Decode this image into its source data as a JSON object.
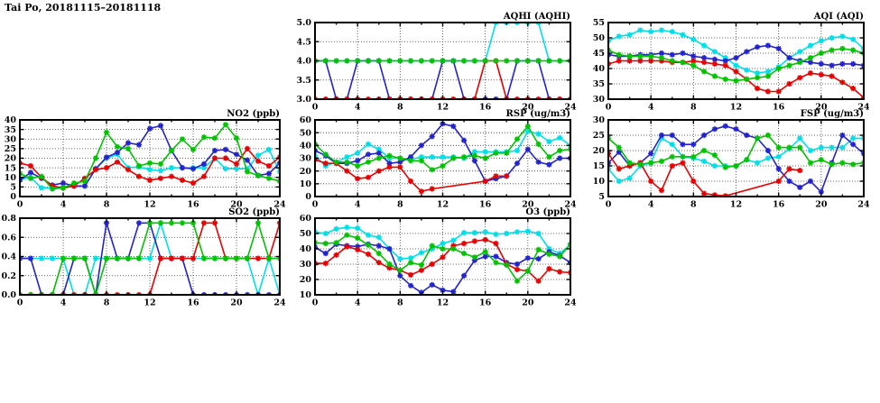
{
  "title": "Tai Po, 20181115–20181118",
  "colors": {
    "red": "#e60000",
    "green": "#00c300",
    "blue": "#2323cc",
    "cyan": "#00dfe8"
  },
  "chart_data": [
    {
      "key": "aqhi",
      "type": "line",
      "title": "AQHI (AQHI)",
      "grid_pos": {
        "col": 1,
        "row": 0
      },
      "xlim": [
        0,
        24
      ],
      "xticks": [
        0,
        4,
        8,
        12,
        16,
        20,
        24
      ],
      "xminor": 2,
      "ylim": [
        3.0,
        5.0
      ],
      "yticks": [
        3.0,
        3.5,
        4.0,
        4.5,
        5.0
      ],
      "ydecimals": 1,
      "grid": true,
      "legend": "none",
      "series": [
        {
          "name": "cyan",
          "values": [
            4,
            4,
            4,
            4,
            4,
            4,
            4,
            4,
            4,
            4,
            4,
            4,
            4,
            4,
            4,
            4,
            4,
            5,
            5,
            5,
            5,
            5,
            4,
            4,
            4
          ]
        },
        {
          "name": "blue",
          "values": [
            4,
            4,
            3,
            3,
            4,
            4,
            4,
            3,
            3,
            3,
            3,
            3,
            4,
            4,
            3,
            3,
            3,
            3,
            3,
            4,
            4,
            4,
            3,
            3,
            3
          ]
        },
        {
          "name": "red",
          "values": [
            3,
            3,
            3,
            3,
            3,
            3,
            3,
            3,
            3,
            3,
            3,
            3,
            3,
            3,
            3,
            3,
            4,
            4,
            3,
            3,
            3,
            3,
            3,
            3,
            3
          ]
        },
        {
          "name": "green",
          "values": [
            4,
            4,
            4,
            4,
            4,
            4,
            4,
            4,
            4,
            4,
            4,
            4,
            4,
            4,
            4,
            4,
            4,
            4,
            4,
            4,
            4,
            4,
            4,
            4,
            4
          ]
        }
      ]
    },
    {
      "key": "aqi",
      "type": "line",
      "title": "AQI (AQI)",
      "grid_pos": {
        "col": 2,
        "row": 0
      },
      "xlim": [
        0,
        24
      ],
      "xticks": [
        0,
        4,
        8,
        12,
        16,
        20,
        24
      ],
      "xminor": 2,
      "ylim": [
        30,
        55
      ],
      "yticks": [
        30,
        35,
        40,
        45,
        50,
        55
      ],
      "ydecimals": 0,
      "grid": true,
      "legend": "none",
      "series": [
        {
          "name": "cyan",
          "values": [
            49,
            50.5,
            51,
            52.5,
            52,
            52.5,
            52,
            51,
            49.5,
            47.5,
            45.5,
            43.5,
            41,
            39.5,
            38.5,
            39,
            40.5,
            43.5,
            45.5,
            47.5,
            49,
            50,
            50.5,
            49.5,
            46.5
          ]
        },
        {
          "name": "blue",
          "values": [
            44.5,
            44,
            44,
            44.5,
            44.5,
            45,
            44.5,
            45,
            44,
            43.5,
            43,
            42.5,
            43.5,
            45.5,
            47,
            47.5,
            46.5,
            43.5,
            42.5,
            42,
            41.5,
            41,
            41.5,
            41.5,
            41
          ]
        },
        {
          "name": "red",
          "values": [
            41.5,
            42.5,
            42.5,
            42.5,
            42.5,
            42.5,
            42,
            42,
            42.5,
            42,
            41.5,
            41,
            39,
            36.5,
            33.5,
            32.5,
            32.5,
            35,
            37,
            38.5,
            38,
            37.5,
            35.5,
            33.5,
            30.5
          ]
        },
        {
          "name": "green",
          "values": [
            46,
            44.5,
            44,
            44,
            44,
            43.5,
            42.5,
            42,
            41,
            39,
            37.5,
            36.5,
            36,
            36.5,
            37,
            37.5,
            40,
            41,
            42,
            43.5,
            45,
            46,
            46.5,
            46,
            45
          ]
        }
      ]
    },
    {
      "key": "no2",
      "type": "line",
      "title": "NO2 (ppb)",
      "grid_pos": {
        "col": 0,
        "row": 1
      },
      "xlim": [
        0,
        24
      ],
      "xticks": [
        0,
        4,
        8,
        12,
        16,
        20,
        24
      ],
      "xminor": 2,
      "ylim": [
        0,
        40
      ],
      "yticks": [
        0,
        5,
        10,
        15,
        20,
        25,
        30,
        35,
        40
      ],
      "ydecimals": 0,
      "grid": true,
      "legend": "none",
      "series": [
        {
          "name": "cyan",
          "values": [
            9,
            10,
            4.5,
            4.5,
            4.5,
            5.5,
            5.5,
            14.5,
            20,
            22,
            15,
            15.5,
            14,
            13.5,
            15,
            15,
            15,
            15,
            20,
            14.5,
            14.5,
            14.5,
            21.5,
            24.5,
            13
          ]
        },
        {
          "name": "blue",
          "values": [
            8.5,
            12.5,
            9.5,
            6,
            7,
            5.5,
            5.5,
            14.5,
            20.5,
            23,
            28,
            27,
            35.5,
            37,
            24,
            15,
            14.5,
            17,
            24,
            24.5,
            22,
            19,
            11,
            12,
            17.5
          ]
        },
        {
          "name": "red",
          "values": [
            17.5,
            16,
            10,
            5.5,
            4.5,
            5.5,
            9.5,
            14,
            15,
            18,
            14,
            10.5,
            8.5,
            9.5,
            10.5,
            8.5,
            7,
            10.5,
            20,
            20,
            17,
            25,
            18.5,
            16,
            20.5
          ]
        },
        {
          "name": "green",
          "values": [
            12,
            9.5,
            10.5,
            4,
            4.5,
            7,
            8,
            20,
            33.5,
            26,
            25,
            16,
            17.5,
            17,
            24,
            30,
            24.5,
            31,
            30.5,
            37.5,
            30.5,
            13,
            11,
            9.5,
            8
          ]
        }
      ]
    },
    {
      "key": "rsp",
      "type": "line",
      "title": "RSP (ug/m3)",
      "grid_pos": {
        "col": 1,
        "row": 1
      },
      "xlim": [
        0,
        24
      ],
      "xticks": [
        0,
        4,
        8,
        12,
        16,
        20,
        24
      ],
      "xminor": 2,
      "ylim": [
        0,
        60
      ],
      "yticks": [
        0,
        10,
        20,
        30,
        40,
        50,
        60
      ],
      "ydecimals": 0,
      "grid": true,
      "legend": "none",
      "series": [
        {
          "name": "cyan",
          "values": [
            32,
            24,
            27,
            31,
            34,
            41,
            37,
            30,
            30,
            29,
            31,
            31,
            31,
            31,
            30,
            35,
            35,
            35,
            35,
            36,
            51,
            49,
            43,
            46,
            40
          ]
        },
        {
          "name": "blue",
          "values": [
            36,
            32,
            26,
            26,
            28,
            33,
            34,
            26,
            27,
            31,
            40,
            47,
            57,
            55,
            44,
            28,
            12,
            14,
            16,
            26,
            37,
            27,
            25,
            30,
            30
          ]
        },
        {
          "name": "red",
          "values": [
            29,
            26,
            26,
            20,
            14,
            15,
            20,
            23,
            23,
            12,
            4,
            6,
            null,
            null,
            null,
            null,
            12,
            16,
            16,
            null,
            null,
            null,
            null,
            null,
            null
          ]
        },
        {
          "name": "green",
          "values": [
            41,
            33,
            27,
            27,
            24,
            27,
            30,
            32,
            30,
            28,
            28,
            21,
            24,
            30,
            31,
            32,
            30,
            34,
            34,
            45,
            55,
            41,
            31,
            36,
            37
          ]
        }
      ]
    },
    {
      "key": "fsp",
      "type": "line",
      "title": "FSP (ug/m3)",
      "grid_pos": {
        "col": 2,
        "row": 1
      },
      "xlim": [
        0,
        24
      ],
      "xticks": [
        0,
        4,
        8,
        12,
        16,
        20,
        24
      ],
      "xminor": 2,
      "ylim": [
        5,
        30
      ],
      "yticks": [
        5,
        10,
        15,
        20,
        25,
        30
      ],
      "ydecimals": 0,
      "grid": true,
      "legend": "none",
      "series": [
        {
          "name": "cyan",
          "values": [
            14,
            10,
            11,
            15,
            16,
            24,
            22,
            18,
            17.5,
            16.5,
            15,
            15,
            15,
            17,
            16,
            17.5,
            18,
            20.5,
            24,
            20,
            21,
            21,
            21,
            24,
            24
          ]
        },
        {
          "name": "blue",
          "values": [
            16,
            19.5,
            15,
            16,
            19,
            25,
            25,
            22,
            22,
            25,
            27,
            28,
            27,
            25,
            24,
            20,
            14,
            10,
            8,
            10,
            6.5,
            16,
            25,
            22,
            19
          ]
        },
        {
          "name": "red",
          "values": [
            19,
            14,
            15,
            16,
            10,
            7,
            15,
            16,
            10,
            6,
            5.5,
            5.2,
            null,
            null,
            null,
            null,
            10,
            14,
            13.5,
            null,
            null,
            null,
            null,
            null,
            null
          ]
        },
        {
          "name": "green",
          "values": [
            24,
            21,
            16,
            15.5,
            16,
            16.5,
            18,
            18,
            18,
            20,
            18.5,
            14.5,
            15,
            17,
            24,
            25,
            21,
            21,
            21,
            16,
            17,
            15.5,
            16,
            15.5,
            16
          ]
        }
      ]
    },
    {
      "key": "so2",
      "type": "line",
      "title": "SO2 (ppb)",
      "grid_pos": {
        "col": 0,
        "row": 2
      },
      "xlim": [
        0,
        24
      ],
      "xticks": [
        0,
        4,
        8,
        12,
        16,
        20,
        24
      ],
      "xminor": 2,
      "ylim": [
        0.0,
        0.8
      ],
      "yticks": [
        0.0,
        0.2,
        0.4,
        0.6,
        0.8
      ],
      "ydecimals": 1,
      "grid": true,
      "legend": "none",
      "series": [
        {
          "name": "cyan",
          "values": [
            0.38,
            0.38,
            0.38,
            0.38,
            0.38,
            0,
            0,
            0.38,
            0.38,
            0.38,
            0.38,
            0.38,
            0.38,
            0.75,
            0.38,
            0.38,
            0.38,
            0.38,
            0.38,
            0.38,
            0.38,
            0.38,
            0,
            0.38,
            0
          ]
        },
        {
          "name": "blue",
          "values": [
            0.38,
            0.38,
            0,
            0,
            0,
            0.38,
            0.38,
            0,
            0.75,
            0.38,
            0.38,
            0.75,
            0.75,
            0.38,
            0.38,
            0.38,
            0,
            0,
            0,
            0,
            0,
            0,
            0,
            0,
            0
          ]
        },
        {
          "name": "red",
          "values": [
            0,
            0,
            0,
            0,
            0,
            0,
            0,
            0,
            0,
            0,
            0,
            0,
            0,
            0.38,
            0.38,
            0.38,
            0.38,
            0.75,
            0.75,
            0.38,
            0.38,
            0.38,
            0.38,
            0.38,
            0.75
          ]
        },
        {
          "name": "green",
          "values": [
            0,
            0,
            0,
            0,
            0.38,
            0.38,
            0.38,
            0,
            0.38,
            0.38,
            0.38,
            0.38,
            0.75,
            0.75,
            0.75,
            0.75,
            0.75,
            0.38,
            0.38,
            0.38,
            0.38,
            0.38,
            0.75,
            0.38,
            0.38
          ]
        }
      ]
    },
    {
      "key": "o3",
      "type": "line",
      "title": "O3 (ppb)",
      "grid_pos": {
        "col": 1,
        "row": 2
      },
      "xlim": [
        0,
        24
      ],
      "xticks": [
        0,
        4,
        8,
        12,
        16,
        20,
        24
      ],
      "xminor": 2,
      "ylim": [
        10,
        60
      ],
      "yticks": [
        10,
        20,
        30,
        40,
        50,
        60
      ],
      "ydecimals": 0,
      "grid": true,
      "legend": "none",
      "series": [
        {
          "name": "cyan",
          "values": [
            51,
            50,
            53,
            54,
            53.5,
            49,
            47.5,
            40,
            33.5,
            34,
            37.5,
            40,
            43.5,
            45.5,
            50.5,
            50.5,
            51,
            49.5,
            50,
            51,
            51.5,
            50,
            40,
            37,
            42.5
          ]
        },
        {
          "name": "blue",
          "values": [
            41,
            37,
            43,
            42,
            41.5,
            43,
            42,
            40,
            22.5,
            16,
            11.5,
            16.5,
            13,
            12,
            22.5,
            32.5,
            35,
            35,
            31,
            30,
            34,
            33.5,
            38,
            35.5,
            31
          ]
        },
        {
          "name": "red",
          "values": [
            30.5,
            30.5,
            36,
            41.5,
            39.5,
            36.5,
            31,
            27.5,
            26,
            23,
            26,
            30,
            34.5,
            42,
            43.5,
            45,
            46,
            43.5,
            30,
            26.5,
            25.5,
            19,
            27,
            25,
            24.5
          ]
        },
        {
          "name": "green",
          "values": [
            44,
            43.5,
            44,
            49,
            47,
            42.5,
            37,
            30,
            26,
            31,
            29.5,
            42,
            40,
            40,
            37,
            34.5,
            38,
            31,
            29.5,
            19,
            25.5,
            39.5,
            36.5,
            35,
            43
          ]
        }
      ]
    }
  ]
}
